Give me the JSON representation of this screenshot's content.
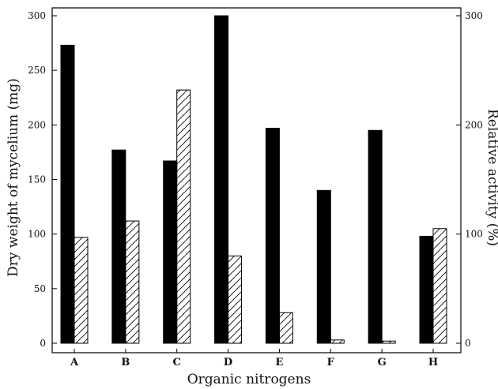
{
  "chart_data": {
    "type": "bar",
    "categories": [
      "A",
      "B",
      "C",
      "D",
      "E",
      "F",
      "G",
      "H"
    ],
    "series": [
      {
        "name": "",
        "axis": "left",
        "fill": "#000000",
        "pattern": "solid",
        "values": [
          273,
          177,
          167,
          300,
          197,
          140,
          195,
          98
        ]
      },
      {
        "name": "",
        "axis": "right",
        "fill": "#ffffff",
        "pattern": "hatched",
        "values": [
          97,
          112,
          232,
          80,
          28,
          3,
          2,
          105
        ]
      }
    ],
    "xlabel": "Organic nitrogens",
    "ylabel": "Dry weight of mycelium (mg)",
    "y2label": "Relative activity (%)",
    "ylim": [
      0,
      300
    ],
    "y2lim": [
      0,
      300
    ],
    "yticks": [
      "0",
      "50",
      "100",
      "150",
      "200",
      "250",
      "300"
    ],
    "y2ticks": [
      "0",
      "100",
      "200",
      "300"
    ],
    "grid": false,
    "legend": "none"
  }
}
